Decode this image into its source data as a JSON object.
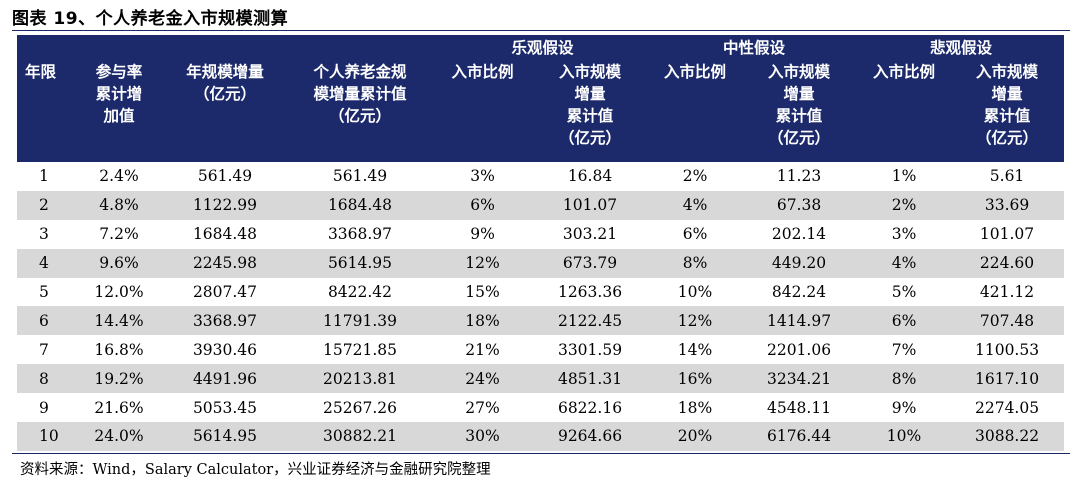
{
  "title": "图表 19、个人养老金入市规模测算",
  "groups": {
    "optimistic": "乐观假设",
    "neutral": "中性假设",
    "pessimistic": "悲观假设"
  },
  "headers": {
    "year": "年限",
    "cum_increase": [
      "参与率",
      "累计增",
      "加值"
    ],
    "annual_increase": [
      "年规模增量",
      "（亿元）"
    ],
    "pension_cum": [
      "个人养老金规",
      "模增量累计值",
      "（亿元）"
    ],
    "entry_ratio": [
      "入市比例"
    ],
    "entry_cum": [
      "入市规模",
      "增量",
      "累计值",
      "（亿元）"
    ]
  },
  "rows": [
    [
      "1",
      "2.4%",
      "561.49",
      "561.49",
      "3%",
      "16.84",
      "2%",
      "11.23",
      "1%",
      "5.61"
    ],
    [
      "2",
      "4.8%",
      "1122.99",
      "1684.48",
      "6%",
      "101.07",
      "4%",
      "67.38",
      "2%",
      "33.69"
    ],
    [
      "3",
      "7.2%",
      "1684.48",
      "3368.97",
      "9%",
      "303.21",
      "6%",
      "202.14",
      "3%",
      "101.07"
    ],
    [
      "4",
      "9.6%",
      "2245.98",
      "5614.95",
      "12%",
      "673.79",
      "8%",
      "449.20",
      "4%",
      "224.60"
    ],
    [
      "5",
      "12.0%",
      "2807.47",
      "8422.42",
      "15%",
      "1263.36",
      "10%",
      "842.24",
      "5%",
      "421.12"
    ],
    [
      "6",
      "14.4%",
      "3368.97",
      "11791.39",
      "18%",
      "2122.45",
      "12%",
      "1414.97",
      "6%",
      "707.48"
    ],
    [
      "7",
      "16.8%",
      "3930.46",
      "15721.85",
      "21%",
      "3301.59",
      "14%",
      "2201.06",
      "7%",
      "1100.53"
    ],
    [
      "8",
      "19.2%",
      "4491.96",
      "20213.81",
      "24%",
      "4851.31",
      "16%",
      "3234.21",
      "8%",
      "1617.10"
    ],
    [
      "9",
      "21.6%",
      "5053.45",
      "25267.26",
      "27%",
      "6822.16",
      "18%",
      "4548.11",
      "9%",
      "2274.05"
    ],
    [
      "10",
      "24.0%",
      "5614.95",
      "30882.21",
      "30%",
      "9264.66",
      "20%",
      "6176.44",
      "10%",
      "3088.22"
    ]
  ],
  "source": "资料来源：Wind，Salary Calculator，兴业证券经济与金融研究院整理"
}
